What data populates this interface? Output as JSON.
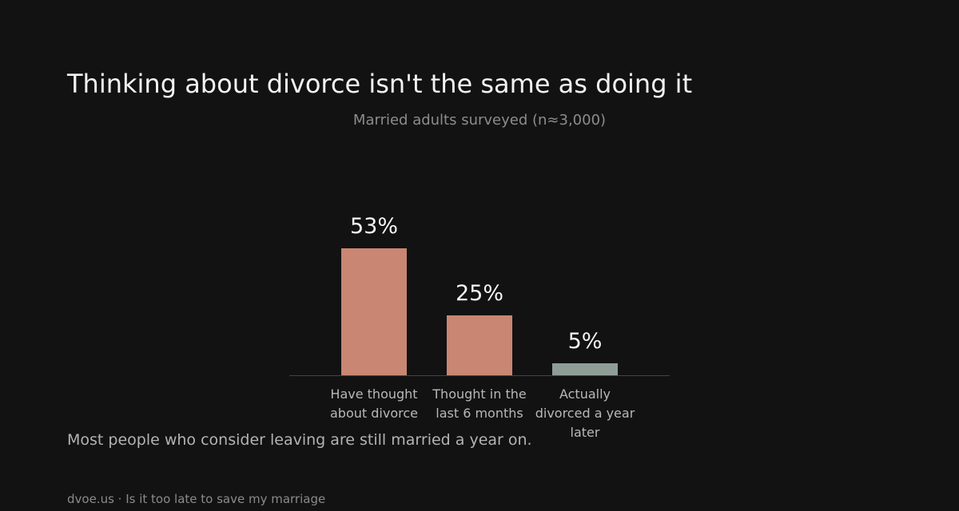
{
  "chart_data": {
    "type": "bar",
    "title": "Thinking about divorce isn't the same as doing it",
    "subtitle": "Married adults surveyed (n≈3,000)",
    "categories": [
      "Have thought about divorce",
      "Thought in the last 6 months",
      "Actually divorced a year later"
    ],
    "values": [
      53,
      25,
      5
    ],
    "value_labels": [
      "53%",
      "25%",
      "5%"
    ],
    "colors": [
      "#c98672",
      "#c98672",
      "#8e9e97"
    ],
    "annotation": "Most people who consider leaving are still married a year on.",
    "footer": "dvoe.us · Is it too late to save my marriage"
  }
}
